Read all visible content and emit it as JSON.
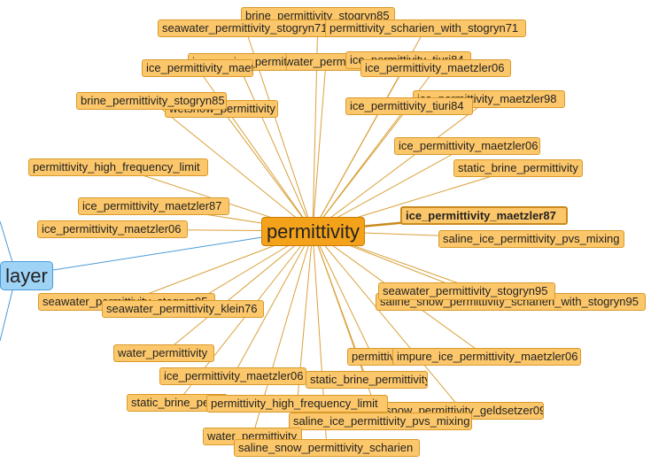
{
  "root": {
    "label": "layer",
    "color": "#9fd3f6"
  },
  "center": {
    "label": "permittivity",
    "color": "#f5a21b"
  },
  "nodes": [
    {
      "label": "brine_permittivity_stogryn85"
    },
    {
      "label": "seawater_permittivity_stogryn71"
    },
    {
      "label": "permittivity_scharien_with_stogryn71"
    },
    {
      "label": "seawater_permittivity_stogryn71"
    },
    {
      "label": "ice_permittivity_tiuri84"
    },
    {
      "label": "impure_ice_permittivity_maetzler06"
    },
    {
      "label": "ice_permittivity_maetzler06"
    },
    {
      "label": "ice_permittivity_maetzler98"
    },
    {
      "label": "ice_permittivity_maetzler06"
    },
    {
      "label": "wetsnow_permittivity"
    },
    {
      "label": "ice_permittivity_tiuri84"
    },
    {
      "label": "brine_permittivity_stogryn85"
    },
    {
      "label": "ice_permittivity_maetzler06"
    },
    {
      "label": "permittivity_high_frequency_limit"
    },
    {
      "label": "static_brine_permittivity"
    },
    {
      "label": "ice_permittivity_maetzler87"
    },
    {
      "label": "ice_permittivity_maetzler87"
    },
    {
      "label": "ice_permittivity_maetzler06"
    },
    {
      "label": "saline_ice_permittivity_pvs_mixing"
    },
    {
      "label": "saline_snow_permittivity_scharien_with_stogryn95"
    },
    {
      "label": "seawater_permittivity_stogryn95"
    },
    {
      "label": "seawater_permittivity_stogryn95"
    },
    {
      "label": "seawater_permittivity_klein76"
    },
    {
      "label": "water_permittivity"
    },
    {
      "label": "permittivity"
    },
    {
      "label": "impure_ice_permittivity_maetzler06"
    },
    {
      "label": "ice_permittivity_maetzler06"
    },
    {
      "label": "static_brine_permittivity"
    },
    {
      "label": "snow_permittivity_geldsetzer09"
    },
    {
      "label": "static_brine_permittivity"
    },
    {
      "label": "permittivity_high_frequency_limit"
    },
    {
      "label": "saline_ice_permittivity_pvs_mixing"
    },
    {
      "label": "water_permittivity"
    },
    {
      "label": "saline_snow_permittivity_scharien"
    }
  ]
}
